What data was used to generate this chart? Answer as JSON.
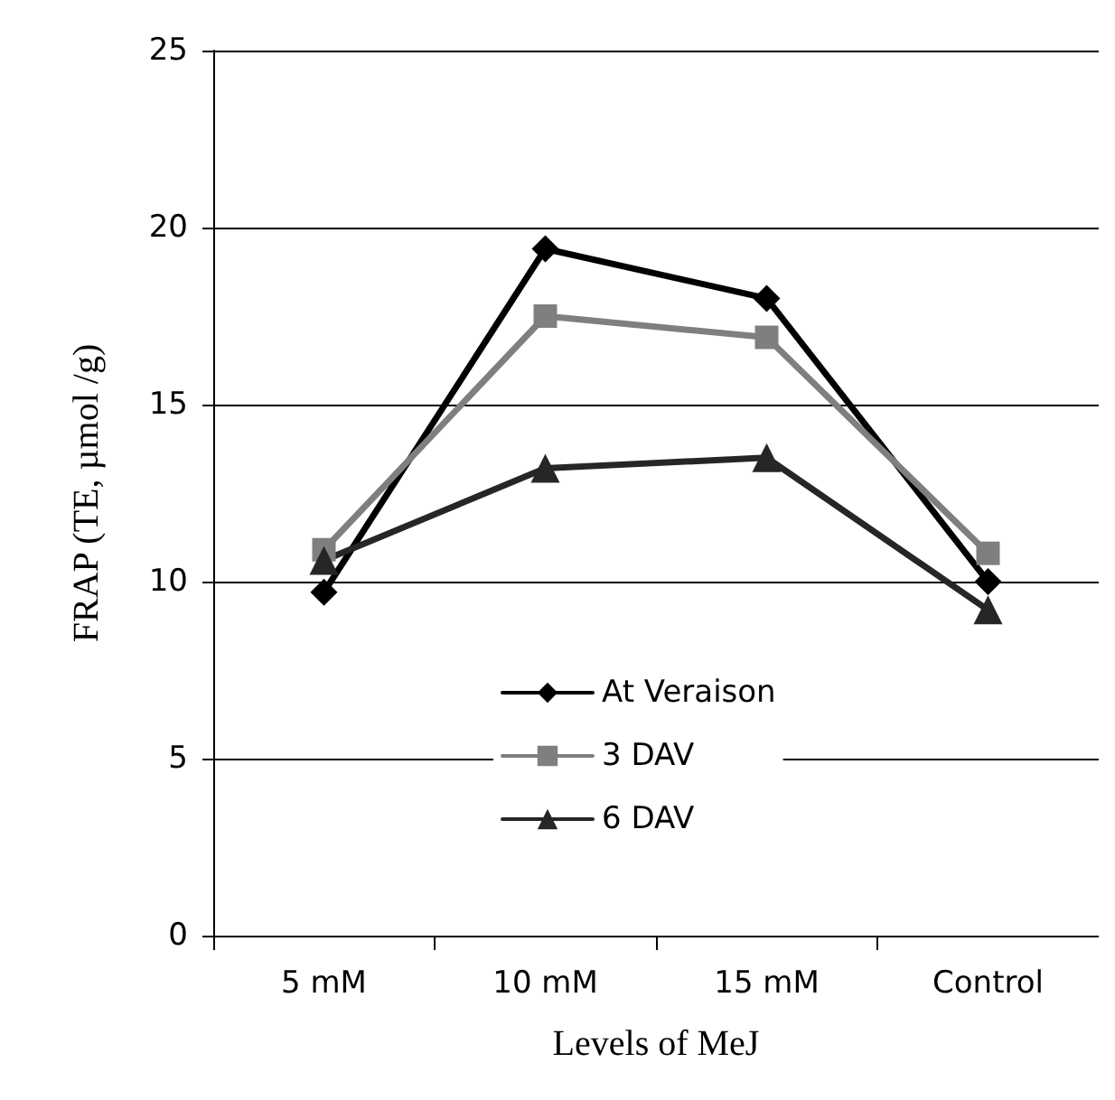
{
  "chart_data": {
    "type": "line",
    "xlabel": "Levels of MeJ",
    "ylabel": "FRAP (TE, µmol /g)",
    "categories": [
      "5 mM",
      "10 mM",
      "15 mM",
      "Control"
    ],
    "series": [
      {
        "name": "At Veraison",
        "color": "#000000",
        "marker": "diamond",
        "values": [
          9.7,
          19.4,
          18.0,
          10.0
        ]
      },
      {
        "name": "3 DAV",
        "color": "#7f7f7f",
        "marker": "square",
        "values": [
          10.9,
          17.5,
          16.9,
          10.8
        ]
      },
      {
        "name": "6 DAV",
        "color": "#262626",
        "marker": "triangle",
        "values": [
          10.6,
          13.2,
          13.5,
          9.2
        ]
      }
    ],
    "ylim": [
      0,
      25
    ],
    "yticks": [
      0,
      5,
      10,
      15,
      20,
      25
    ],
    "grid": "y",
    "legend": "bottom",
    "line_style": "solid"
  }
}
